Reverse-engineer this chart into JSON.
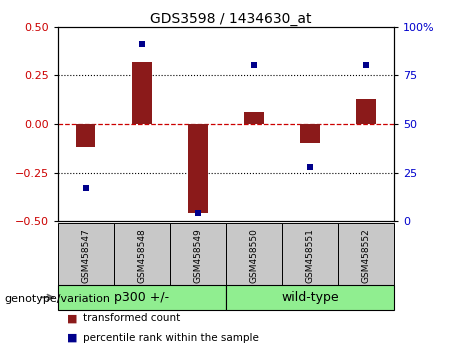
{
  "title": "GDS3598 / 1434630_at",
  "samples": [
    "GSM458547",
    "GSM458548",
    "GSM458549",
    "GSM458550",
    "GSM458551",
    "GSM458552"
  ],
  "bar_values": [
    -0.12,
    0.32,
    -0.46,
    0.06,
    -0.1,
    0.13
  ],
  "scatter_values": [
    17,
    91,
    4,
    80,
    28,
    80
  ],
  "bar_color": "#8B1A1A",
  "scatter_color": "#00008B",
  "ylim_left": [
    -0.5,
    0.5
  ],
  "ylim_right": [
    0,
    100
  ],
  "yticks_left": [
    -0.5,
    -0.25,
    0,
    0.25,
    0.5
  ],
  "yticks_right": [
    0,
    25,
    50,
    75,
    100
  ],
  "hline_color": "#CC0000",
  "dotted_vals": [
    -0.25,
    0,
    0.25
  ],
  "group1_label": "p300 +/-",
  "group2_label": "wild-type",
  "group_color": "#90EE90",
  "sample_bg": "#C8C8C8",
  "legend_items": [
    "transformed count",
    "percentile rank within the sample"
  ],
  "genotype_label": "genotype/variation",
  "title_fontsize": 10,
  "tick_fontsize": 8,
  "sample_fontsize": 6.5,
  "group_fontsize": 9,
  "legend_fontsize": 7.5,
  "genotype_fontsize": 8
}
